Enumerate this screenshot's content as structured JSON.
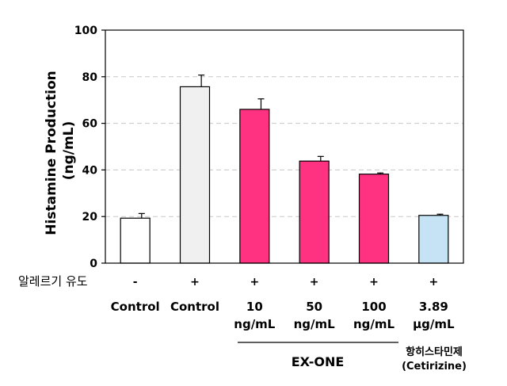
{
  "chart_data": {
    "type": "bar",
    "ylabel_line1": "Histamine Production",
    "ylabel_line2": "(ng/mL)",
    "ylim": [
      0,
      100
    ],
    "yticks": [
      "0",
      "20",
      "40",
      "60",
      "80",
      "100"
    ],
    "grid": "dashed horizontal",
    "induction_label": "알레르기 유도",
    "categories": [
      {
        "line1": "Control",
        "line2": "",
        "induced": "-",
        "value": 19.3,
        "error": 2.0,
        "color": "#ffffff"
      },
      {
        "line1": "Control",
        "line2": "",
        "induced": "+",
        "value": 75.7,
        "error": 5.0,
        "color": "#f0f0f0"
      },
      {
        "line1": "10",
        "line2": "ng/mL",
        "induced": "+",
        "value": 66.0,
        "error": 4.5,
        "color": "#ff3282"
      },
      {
        "line1": "50",
        "line2": "ng/mL",
        "induced": "+",
        "value": 43.8,
        "error": 2.0,
        "color": "#ff3282"
      },
      {
        "line1": "100",
        "line2": "ng/mL",
        "induced": "+",
        "value": 38.2,
        "error": 0.5,
        "color": "#ff3282"
      },
      {
        "line1": "3.89",
        "line2": "μg/mL",
        "induced": "+",
        "value": 20.5,
        "error": 0.5,
        "color": "#c5e3f5"
      }
    ],
    "group_label": "EX-ONE",
    "reference_label_line1": "항히스타민제",
    "reference_label_line2": "(Cetirizine)"
  }
}
